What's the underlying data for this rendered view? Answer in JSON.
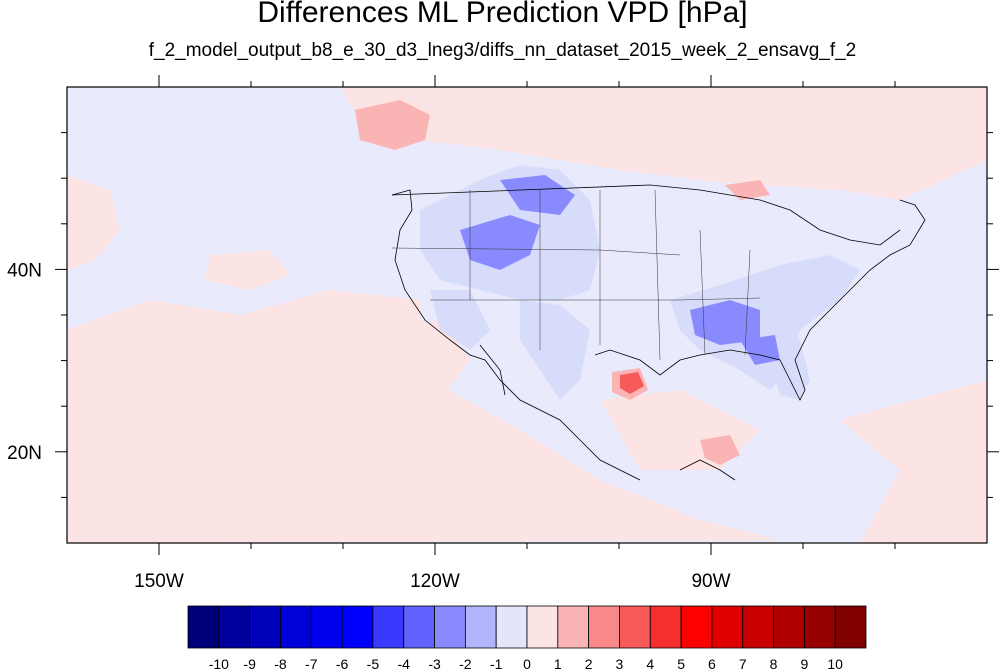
{
  "title": "Differences ML Prediction VPD [hPa]",
  "subtitle": "f_2_model_output_b8_e_30_d3_lneg3/diffs_nn_dataset_2015_week_2_ensavg_f_2",
  "map": {
    "lon_range": [
      -160,
      -60
    ],
    "lat_range": [
      10,
      60
    ],
    "lon_ticks": [
      {
        "value": -150,
        "label": "150W"
      },
      {
        "value": -120,
        "label": "120W"
      },
      {
        "value": -90,
        "label": "90W"
      }
    ],
    "lat_ticks": [
      {
        "value": 40,
        "label": "40N"
      },
      {
        "value": 20,
        "label": "20N"
      }
    ],
    "ocean_color": "#e9eafc",
    "positive_light": "#fde4e4",
    "negative_light": "#d8dcfb"
  },
  "colorbar": {
    "labels": [
      "-10",
      "-9",
      "-8",
      "-7",
      "-6",
      "-5",
      "-4",
      "-3",
      "-2",
      "-1",
      "0",
      "1",
      "2",
      "3",
      "4",
      "5",
      "6",
      "7",
      "8",
      "9",
      "10"
    ],
    "colors": [
      "#00007a",
      "#00009c",
      "#0000bb",
      "#0000d9",
      "#0000f0",
      "#0000ff",
      "#3a3aff",
      "#6262ff",
      "#8a8aff",
      "#b4b4fb",
      "#e3e5fb",
      "#fde4e4",
      "#fbb4b4",
      "#f98888",
      "#f65a5a",
      "#f52e2e",
      "#ff0000",
      "#e10000",
      "#c80000",
      "#ae0000",
      "#960000",
      "#800000"
    ]
  }
}
